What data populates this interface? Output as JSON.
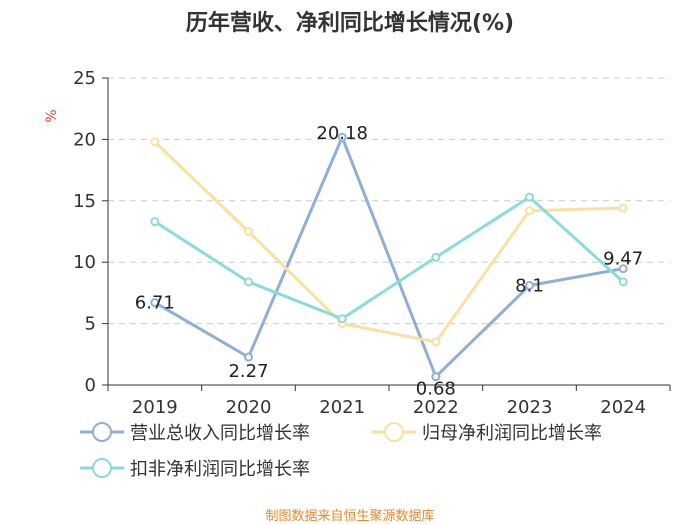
{
  "chart_data": {
    "type": "line",
    "title": "历年营收、净利同比增长情况(%)",
    "ylabel": "%",
    "xlabel": "",
    "categories": [
      "2019",
      "2020",
      "2021",
      "2022",
      "2023",
      "2024"
    ],
    "ylim": [
      0,
      25
    ],
    "yticks": [
      0,
      5,
      10,
      15,
      20,
      25
    ],
    "grid": true,
    "legend_position": "bottom-left",
    "series": [
      {
        "name": "营业总收入同比增长率",
        "values": [
          6.71,
          2.27,
          20.18,
          0.68,
          8.1,
          9.47
        ],
        "color": "#8FAFD9",
        "data_labels": [
          "6.71",
          "2.27",
          "20.18",
          "0.68",
          "8.1",
          "9.47"
        ]
      },
      {
        "name": "归母净利润同比增长率",
        "values": [
          19.8,
          12.5,
          5.0,
          3.5,
          14.2,
          14.4
        ],
        "color": "#FBE0A3"
      },
      {
        "name": "扣非净利润同比增长率",
        "values": [
          13.3,
          8.4,
          5.4,
          10.4,
          15.3,
          8.4
        ],
        "color": "#8DDADC"
      }
    ]
  },
  "source_text": "制图数据来自恒生聚源数据库",
  "colors": {
    "axis": "#333333",
    "grid": "#CCCCCC",
    "unit_label": "#E8432E",
    "source_text": "#E8892B"
  }
}
